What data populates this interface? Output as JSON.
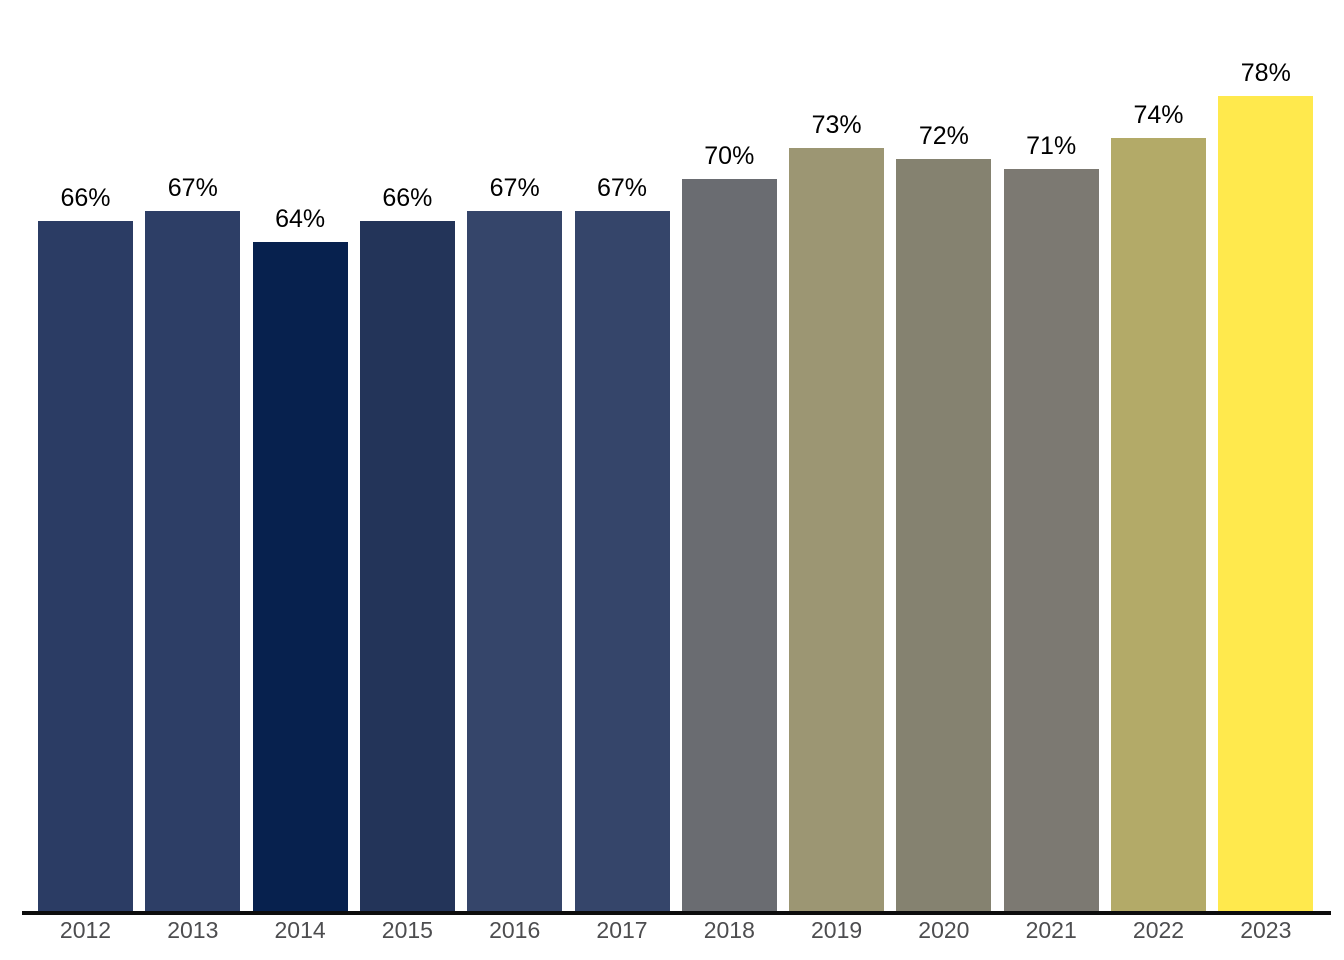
{
  "chart_data": {
    "type": "bar",
    "title": "",
    "xlabel": "",
    "ylabel": "",
    "categories": [
      "2012",
      "2013",
      "2014",
      "2015",
      "2016",
      "2017",
      "2018",
      "2019",
      "2020",
      "2021",
      "2022",
      "2023"
    ],
    "values": [
      66,
      67,
      64,
      66,
      67,
      67,
      70,
      73,
      72,
      71,
      74,
      78
    ],
    "labels": [
      "66%",
      "67%",
      "64%",
      "66%",
      "67%",
      "67%",
      "70%",
      "73%",
      "72%",
      "71%",
      "74%",
      "78%"
    ],
    "bar_colors": [
      "#2b3c64",
      "#2d3e66",
      "#07214e",
      "#233459",
      "#35456a",
      "#35456a",
      "#6a6c71",
      "#9c9673",
      "#858270",
      "#7c7972",
      "#b3aa68",
      "#ffe94d"
    ],
    "ylim": [
      0,
      78
    ],
    "grid": "off",
    "legend": "none",
    "value_label_color": "#000000",
    "axis_label_color": "#4d4d4f",
    "axis_line_color": "#0d0d0d"
  }
}
